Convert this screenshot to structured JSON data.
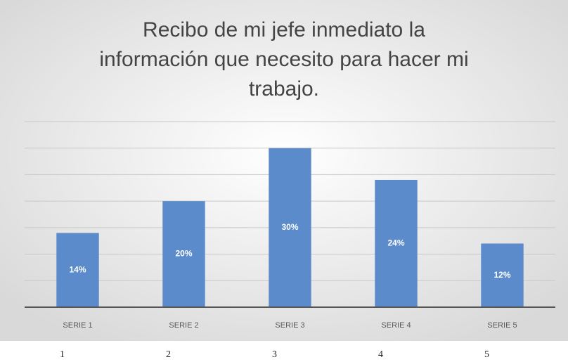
{
  "chart_data": {
    "type": "bar",
    "title": "Recibo de mi jefe inmediato la información que necesito para hacer mi trabajo.",
    "categories": [
      "SERIE 1",
      "SERIE 2",
      "SERIE 3",
      "SERIE 4",
      "SERIE 5"
    ],
    "values": [
      14,
      20,
      30,
      24,
      12
    ],
    "value_labels": [
      "14%",
      "20%",
      "30%",
      "24%",
      "12%"
    ],
    "color": "#5b8bcb",
    "ylim": [
      0,
      35
    ],
    "yticks": [
      0,
      5,
      10,
      15,
      20,
      25,
      30,
      35
    ],
    "grid": true,
    "row_labels": [
      "1",
      "2",
      "3",
      "4",
      "5"
    ]
  }
}
